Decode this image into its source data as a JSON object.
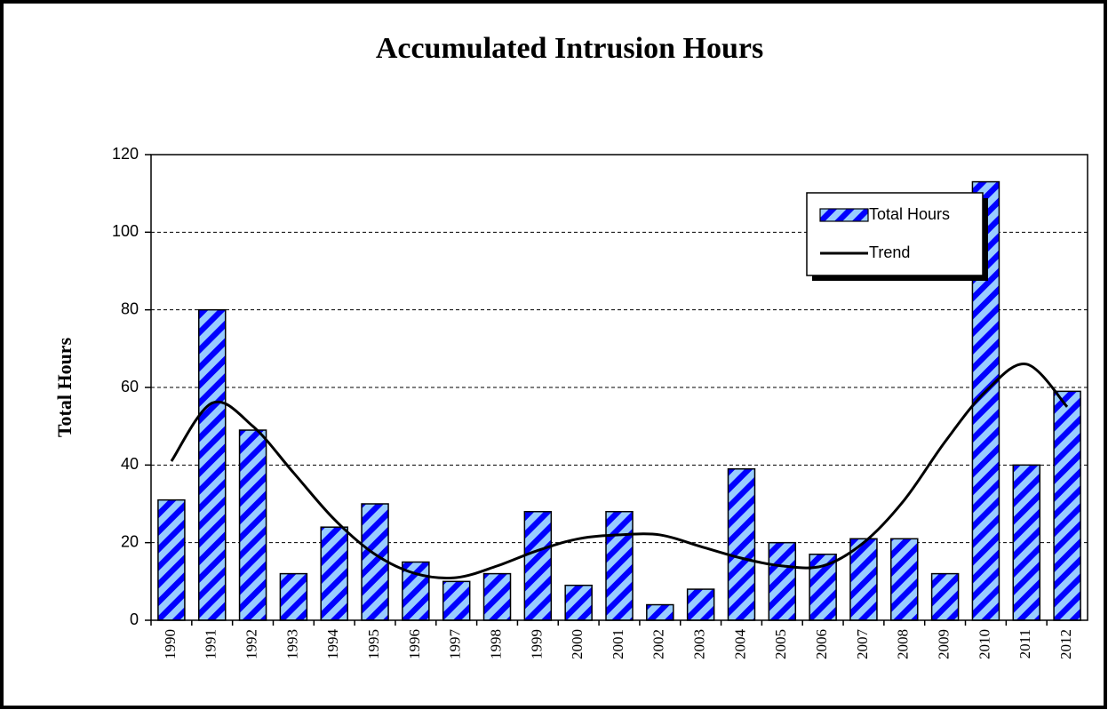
{
  "chart_data": {
    "type": "bar",
    "title": "Accumulated Intrusion Hours",
    "y_label": "Total Hours",
    "categories": [
      "1990",
      "1991",
      "1992",
      "1993",
      "1994",
      "1995",
      "1996",
      "1997",
      "1998",
      "1999",
      "2000",
      "2001",
      "2002",
      "2003",
      "2004",
      "2005",
      "2006",
      "2007",
      "2008",
      "2009",
      "2010",
      "2011",
      "2012"
    ],
    "series": [
      {
        "name": "Total Hours",
        "type": "bar",
        "color": "#99ccff",
        "stripe_color": "#0000ff",
        "values": [
          31,
          80,
          49,
          12,
          24,
          30,
          15,
          10,
          12,
          28,
          9,
          28,
          4,
          8,
          39,
          20,
          17,
          21,
          21,
          12,
          113,
          40,
          59
        ]
      },
      {
        "name": "Trend",
        "type": "line",
        "color": "#000000",
        "values": [
          41,
          56,
          50,
          38,
          26,
          17,
          12,
          11,
          14,
          18,
          21,
          22,
          22,
          19,
          16,
          14,
          14,
          20,
          31,
          46,
          59,
          66,
          55
        ]
      }
    ],
    "ylim": [
      0,
      120
    ],
    "yticks": [
      0,
      20,
      40,
      60,
      80,
      100,
      120
    ],
    "grid": true,
    "legend": "upper right"
  }
}
